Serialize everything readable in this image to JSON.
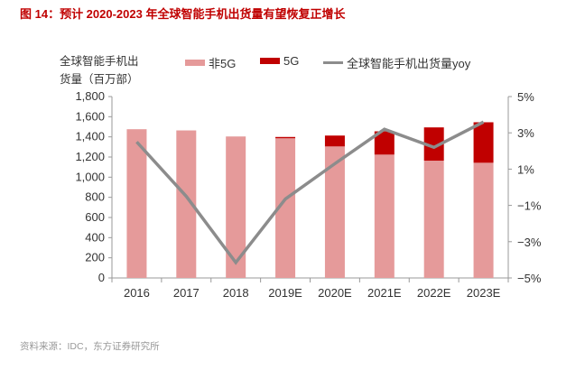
{
  "title": "图 14：预计 2020-2023 年全球智能手机出货量有望恢复正增长",
  "source": "资料来源：IDC，东方证券研究所",
  "chart_data": {
    "type": "bar",
    "title": "图 14：预计 2020-2023 年全球智能手机出货量有望恢复正增长",
    "ylabel": "全球智能手机出货量（百万部）",
    "categories": [
      "2016",
      "2017",
      "2018",
      "2019E",
      "2020E",
      "2021E",
      "2022E",
      "2023E"
    ],
    "ylim": [
      0,
      1800
    ],
    "yticks": [
      "0",
      "200",
      "400",
      "600",
      "800",
      "1,000",
      "1,200",
      "1,400",
      "1,600",
      "1,800"
    ],
    "y2lim": [
      -5,
      5
    ],
    "y2ticks": [
      "−5%",
      "−3%",
      "−1%",
      "1%",
      "3%",
      "5%"
    ],
    "legend_position": "top",
    "series": [
      {
        "name": "非5G",
        "type": "bar",
        "stack": true,
        "color": "#e59a9a",
        "values": [
          1476,
          1464,
          1404,
          1386,
          1305,
          1224,
          1164,
          1143
        ]
      },
      {
        "name": "5G",
        "type": "bar",
        "stack": true,
        "color": "#c00000",
        "values": [
          0,
          0,
          0,
          13,
          108,
          231,
          330,
          402
        ]
      },
      {
        "name": "全球智能手机出货量yoy",
        "type": "line",
        "axis": "right",
        "color": "#8c8c8c",
        "values": [
          2.5,
          -0.5,
          -4.15,
          -0.65,
          1.3,
          3.2,
          2.2,
          3.6
        ]
      }
    ]
  }
}
